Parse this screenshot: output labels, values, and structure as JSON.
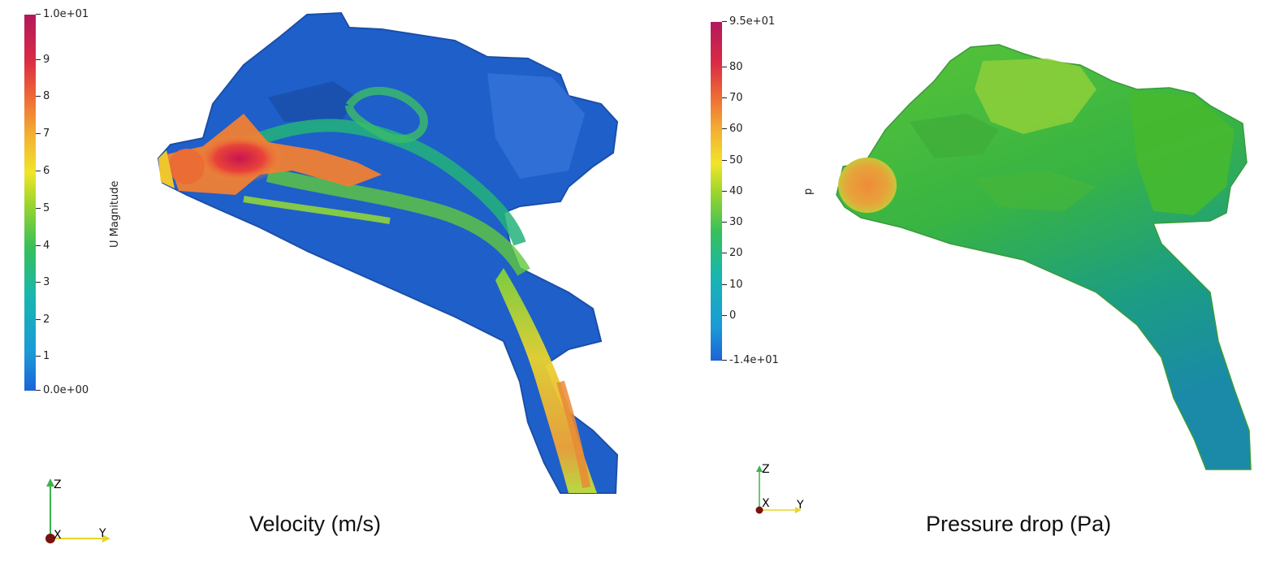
{
  "velocity_panel": {
    "caption": "Velocity (m/s)",
    "colorbar": {
      "title": "U Magnitude",
      "max_label": "1.0e+01",
      "min_label": "0.0e+00",
      "ticks": [
        "9",
        "8",
        "7",
        "6",
        "5",
        "4",
        "3",
        "2",
        "1"
      ],
      "colors": [
        "#2a6cc9",
        "#1e9bd6",
        "#17b8a0",
        "#46c443",
        "#a6d92b",
        "#f2e92a",
        "#f4a534",
        "#ee5a37",
        "#d21d4a",
        "#b0195e"
      ]
    },
    "axes": {
      "z": "Z",
      "x": "X",
      "y": "Y"
    }
  },
  "pressure_panel": {
    "caption": "Pressure drop (Pa)",
    "colorbar": {
      "title": "p",
      "max_label": "9.5e+01",
      "min_label": "-1.4e+01",
      "ticks": [
        "80",
        "70",
        "60",
        "50",
        "40",
        "30",
        "20",
        "10",
        "0"
      ],
      "colors": [
        "#2a6cc9",
        "#1e9bd6",
        "#17b8a0",
        "#46c443",
        "#a6d92b",
        "#f2e92a",
        "#f4a534",
        "#ee5a37",
        "#d21d4a",
        "#b0195e"
      ]
    },
    "axes": {
      "z": "Z",
      "x": "X",
      "y": "Y"
    }
  }
}
